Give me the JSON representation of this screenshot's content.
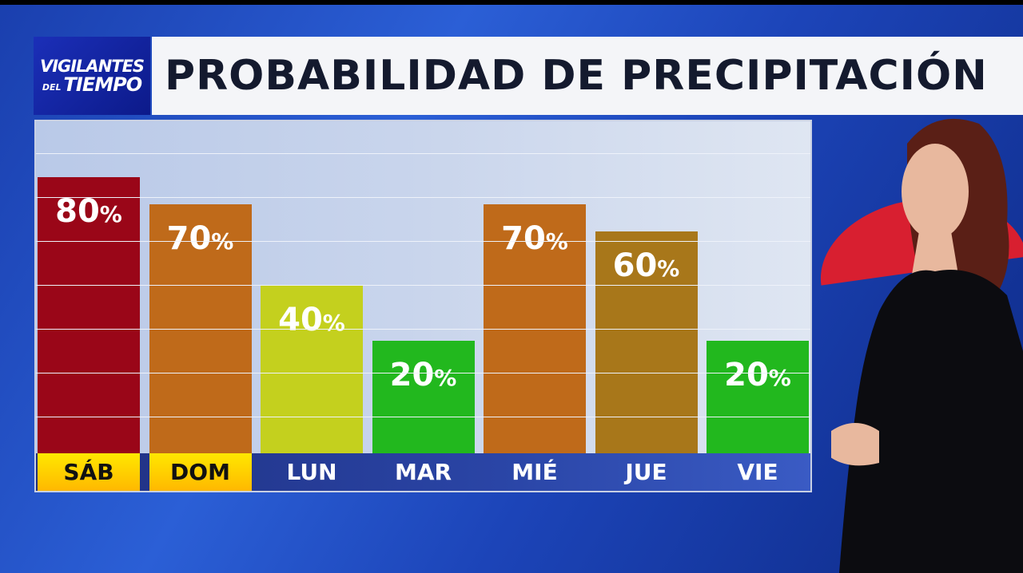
{
  "logo": {
    "line1": "VIGILANTES",
    "line2a": "DEL",
    "line2b": "TIEMPO"
  },
  "header": {
    "title": "PROBABILIDAD DE PRECIPITACIÓN"
  },
  "chart_data": {
    "type": "bar",
    "title": "PROBABILIDAD DE PRECIPITACIÓN",
    "categories": [
      "SÁB",
      "DOM",
      "LUN",
      "MAR",
      "MIÉ",
      "JUE",
      "VIE"
    ],
    "values": [
      80,
      70,
      40,
      20,
      70,
      60,
      20
    ],
    "value_labels": [
      "80",
      "70",
      "40",
      "20",
      "70",
      "60",
      "20"
    ],
    "unit": "%",
    "colors": [
      "#9a0618",
      "#bf6a1a",
      "#c4d01e",
      "#22b81e",
      "#bf6a1a",
      "#a8771a",
      "#22b81e"
    ],
    "highlighted_days": [
      "SÁB",
      "DOM"
    ],
    "highlight_color": "#ffd200",
    "grid": true,
    "ylim": [
      0,
      100
    ]
  }
}
